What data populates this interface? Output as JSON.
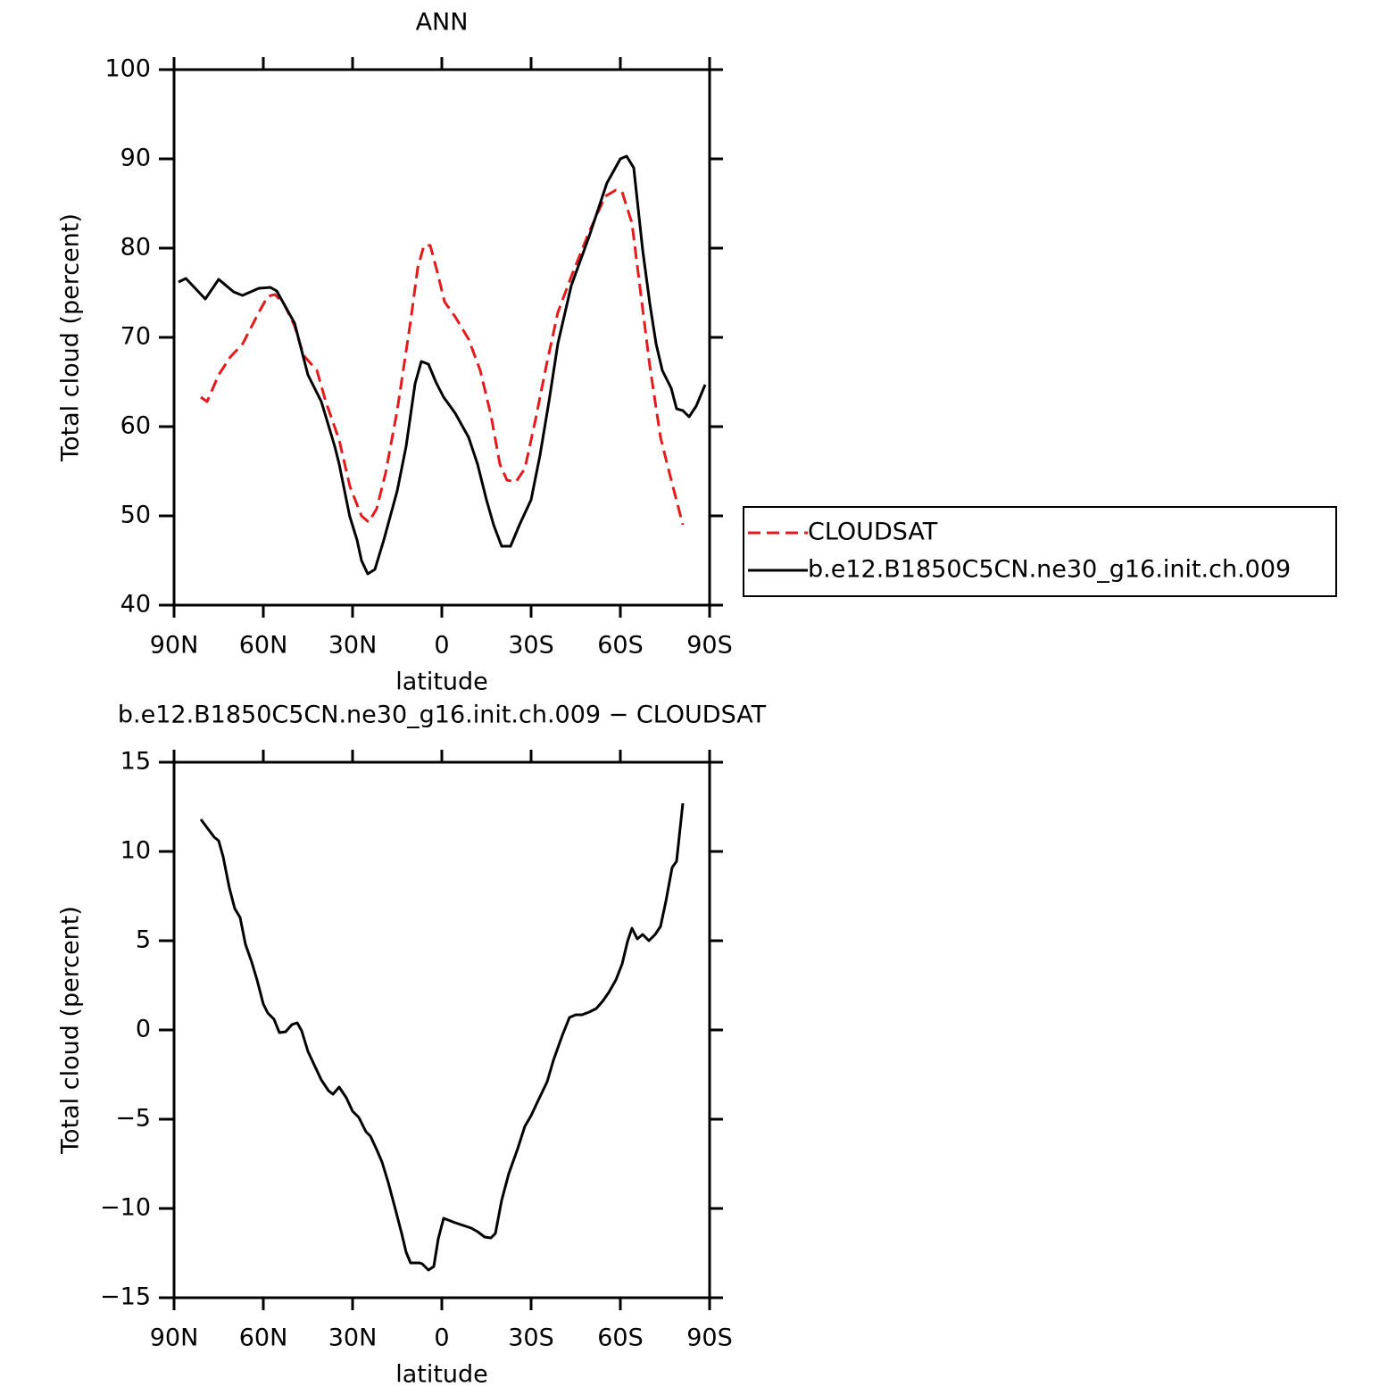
{
  "chart_data": [
    {
      "type": "line",
      "title": "ANN",
      "xlabel": "latitude",
      "ylabel": "Total cloud (percent)",
      "xlim": [
        90,
        -90
      ],
      "xticks": [
        {
          "value": 90,
          "label": "90N"
        },
        {
          "value": 60,
          "label": "60N"
        },
        {
          "value": 30,
          "label": "30N"
        },
        0,
        {
          "value": -30,
          "label": "30S"
        },
        {
          "value": -60,
          "label": "60S"
        },
        {
          "value": -90,
          "label": "90S"
        }
      ],
      "ylim": [
        40,
        100
      ],
      "yticks": [
        40,
        50,
        60,
        70,
        80,
        90,
        100
      ],
      "legend": "right",
      "series": [
        {
          "name": "CLOUDSAT",
          "color": "#e41a1c",
          "dash": true,
          "x": [
            81,
            78.9,
            75,
            71.1,
            66.9,
            61.5,
            58.5,
            56.1,
            53.1,
            49.5,
            46.5,
            42,
            39,
            34.5,
            30.9,
            27,
            24.6,
            21.9,
            18.9,
            15,
            10.5,
            8.1,
            6,
            3.9,
            1.5,
            -0.9,
            -4.5,
            -9,
            -12.9,
            -16.5,
            -19.5,
            -21.9,
            -24.9,
            -27.9,
            -31.5,
            -35.1,
            -39,
            -43.5,
            -49.5,
            -54.9,
            -58.5,
            -60.6,
            -63.9,
            -66.9,
            -69.9,
            -73.5,
            -76.5,
            -81
          ],
          "values": [
            63.3,
            62.8,
            65.8,
            67.8,
            69.3,
            72.8,
            74.6,
            74.8,
            73.8,
            71.3,
            68,
            66.3,
            62.8,
            58.5,
            53.3,
            50,
            49.3,
            50.8,
            54.8,
            61.8,
            71.8,
            77.8,
            80.3,
            80.3,
            77.3,
            74,
            72.3,
            69.8,
            66.3,
            61.3,
            55.8,
            54,
            53.8,
            55.3,
            60.8,
            66.8,
            72.8,
            76.8,
            81.8,
            85.8,
            86.5,
            86.3,
            82.8,
            74.8,
            66.8,
            58.8,
            54.8,
            49
          ]
        },
        {
          "name": "b.e12.B1850C5CN.ne30_g16.init.ch.009",
          "color": "#000000",
          "dash": false,
          "x": [
            88.5,
            86,
            79.5,
            75,
            70,
            67,
            61.5,
            57.6,
            55.5,
            49.5,
            45,
            40.5,
            36,
            34.5,
            31,
            28.5,
            27,
            24.9,
            22.5,
            19.5,
            15,
            12,
            9,
            6.9,
            4.5,
            2,
            -0.6,
            -4.5,
            -9,
            -12,
            -15,
            -17.4,
            -20.1,
            -23.1,
            -26.1,
            -30,
            -33,
            -36,
            -39,
            -43.5,
            -49.5,
            -55.5,
            -60,
            -62.1,
            -64.5,
            -67.5,
            -69.9,
            -72,
            -74.1,
            -77.1,
            -78.9,
            -81,
            -83.1,
            -85.5,
            -88.5
          ],
          "values": [
            76.2,
            76.6,
            74.3,
            76.5,
            75.1,
            74.7,
            75.5,
            75.6,
            75.2,
            71.6,
            65.8,
            62.8,
            57.8,
            55.8,
            50,
            47.3,
            45,
            43.5,
            44,
            47.3,
            52.8,
            57.8,
            64.8,
            67.3,
            67,
            65,
            63.3,
            61.5,
            58.8,
            55.8,
            51.8,
            49,
            46.6,
            46.6,
            49,
            51.8,
            56.8,
            62.8,
            69.3,
            75.8,
            81.3,
            87.3,
            90,
            90.3,
            89,
            79.8,
            73.8,
            69.3,
            66.3,
            64.3,
            62,
            61.8,
            61.1,
            62.3,
            64.7
          ]
        }
      ]
    },
    {
      "type": "line",
      "title": "b.e12.B1850C5CN.ne30_g16.init.ch.009 − CLOUDSAT",
      "xlabel": "latitude",
      "ylabel": "Total cloud (percent)",
      "xlim": [
        90,
        -90
      ],
      "xticks": [
        {
          "value": 90,
          "label": "90N"
        },
        {
          "value": 60,
          "label": "60N"
        },
        {
          "value": 30,
          "label": "30N"
        },
        0,
        {
          "value": -30,
          "label": "30S"
        },
        {
          "value": -60,
          "label": "60S"
        },
        {
          "value": -90,
          "label": "90S"
        }
      ],
      "ylim": [
        -15,
        15
      ],
      "yticks": [
        {
          "value": -15,
          "label": "−15"
        },
        {
          "value": -10,
          "label": "−10"
        },
        {
          "value": -5,
          "label": "−5"
        },
        0,
        5,
        10,
        15
      ],
      "series": [
        {
          "color": "#000000",
          "dash": false,
          "x": [
            81,
            76.5,
            75,
            73.5,
            71.4,
            69.6,
            67.8,
            66,
            63.9,
            62.1,
            60,
            58.5,
            56.4,
            54.6,
            52.5,
            50.4,
            48.6,
            47.1,
            45,
            42.9,
            40.5,
            38.1,
            36.6,
            34.5,
            32.1,
            30,
            27.9,
            25.5,
            24,
            21.9,
            20.1,
            18,
            15.6,
            13.5,
            12,
            10.5,
            7.5,
            6.6,
            4.5,
            2.7,
            1.2,
            -0.6,
            -4.5,
            -9.9,
            -12,
            -14.4,
            -16.5,
            -18,
            -20.1,
            -22.5,
            -25.5,
            -27.9,
            -30,
            -32.1,
            -35.4,
            -37.5,
            -40.5,
            -42.9,
            -45,
            -47.1,
            -49.5,
            -51.9,
            -54,
            -56.1,
            -58.5,
            -60.6,
            -62.4,
            -63.9,
            -65.7,
            -67.5,
            -69.6,
            -71.7,
            -73.5,
            -75.3,
            -77.4,
            -78.9,
            -81
          ],
          "values": [
            11.8,
            10.8,
            10.6,
            9.7,
            7.95,
            6.8,
            6.3,
            4.8,
            3.8,
            2.8,
            1.45,
            0.95,
            0.6,
            -0.15,
            -0.1,
            0.3,
            0.4,
            -0.05,
            -1.2,
            -1.95,
            -2.8,
            -3.4,
            -3.6,
            -3.2,
            -3.8,
            -4.55,
            -4.9,
            -5.7,
            -5.95,
            -6.7,
            -7.4,
            -8.55,
            -10.05,
            -11.4,
            -12.45,
            -13.05,
            -13.05,
            -13.1,
            -13.45,
            -13.25,
            -11.7,
            -10.55,
            -10.8,
            -11.1,
            -11.3,
            -11.6,
            -11.65,
            -11.4,
            -9.55,
            -8.05,
            -6.65,
            -5.4,
            -4.8,
            -4.05,
            -2.9,
            -1.7,
            -0.3,
            0.7,
            0.85,
            0.85,
            1.0,
            1.2,
            1.6,
            2.1,
            2.8,
            3.7,
            4.95,
            5.7,
            5.1,
            5.35,
            5.0,
            5.35,
            5.8,
            7.2,
            9.1,
            9.45,
            12.7
          ]
        }
      ]
    }
  ]
}
